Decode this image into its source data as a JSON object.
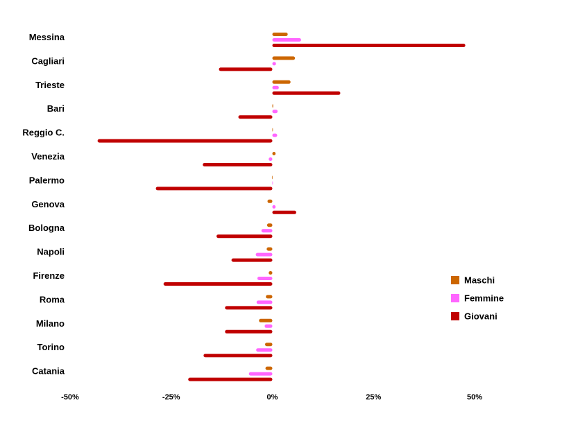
{
  "chart_data": {
    "type": "bar",
    "orientation": "horizontal",
    "categories": [
      "Messina",
      "Cagliari",
      "Trieste",
      "Bari",
      "Reggio C.",
      "Venezia",
      "Palermo",
      "Genova",
      "Bologna",
      "Napoli",
      "Firenze",
      "Roma",
      "Milano",
      "Torino",
      "Catania"
    ],
    "series": [
      {
        "name": "Maschi",
        "color": "#CC6600",
        "values": [
          3.8,
          5.6,
          4.5,
          0.2,
          0.1,
          0.8,
          -0.1,
          -1.2,
          -1.3,
          -1.4,
          -0.9,
          -1.6,
          -3.3,
          -1.8,
          -1.7
        ]
      },
      {
        "name": "Femmine",
        "color": "#FF66FF",
        "values": [
          7.1,
          0.9,
          1.6,
          1.3,
          1.2,
          -0.9,
          0.0,
          0.8,
          -2.7,
          -4.1,
          -3.7,
          -3.9,
          -1.9,
          -4.0,
          -5.8
        ]
      },
      {
        "name": "Giovani",
        "color": "#C00000",
        "values": [
          47.7,
          -13.2,
          16.8,
          -8.4,
          -43.2,
          -17.2,
          -28.8,
          5.9,
          -13.8,
          -10.1,
          -26.9,
          -11.7,
          -11.7,
          -17.0,
          -20.8
        ]
      }
    ],
    "xticks": [
      "-50%",
      "-25%",
      "0%",
      "25%",
      "50%"
    ],
    "xtick_values": [
      -50,
      -25,
      0,
      25,
      50
    ],
    "xlim": [
      -50,
      50
    ],
    "grid": false,
    "legend_position": "right"
  }
}
